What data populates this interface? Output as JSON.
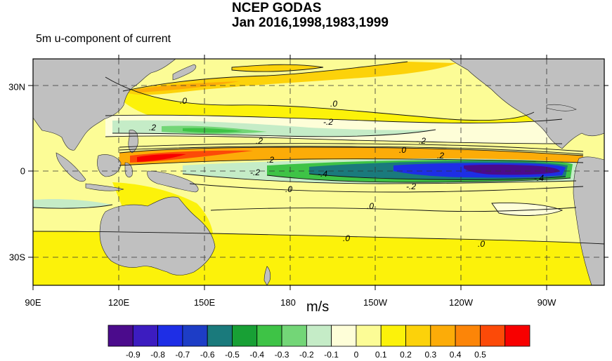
{
  "title_line1": "NCEP GODAS",
  "title_line2": "Jan 2016,1998,1983,1999",
  "subtitle": "5m u-component of current",
  "units": "m/s",
  "x_ticks": [
    "90E",
    "120E",
    "150E",
    "180",
    "150W",
    "120W",
    "90W"
  ],
  "y_ticks": [
    "30N",
    "0",
    "30S"
  ],
  "colorbar": {
    "labels": [
      "-0.9",
      "-0.8",
      "-0.7",
      "-0.6",
      "-0.5",
      "-0.4",
      "-0.3",
      "-0.2",
      "-0.1",
      "0",
      "0.1",
      "0.2",
      "0.3",
      "0.4",
      "0.5"
    ],
    "colors": [
      "#4b0b8c",
      "#3c1cc0",
      "#1e2ee6",
      "#1d3dc6",
      "#1a7a7c",
      "#18a035",
      "#3ec346",
      "#73d677",
      "#c5ecc7",
      "#fefed8",
      "#fcfc96",
      "#fcf20a",
      "#fcd20a",
      "#fcac08",
      "#fc8508",
      "#fc4a08",
      "#f80000"
    ]
  },
  "contour_labels": [
    ".0",
    ".0",
    ".2",
    "-.2",
    ".2",
    "-.2",
    ".0",
    ".2",
    "-.2",
    "-.4",
    ".0",
    "-.2",
    ".0",
    ".0",
    ".0",
    "-.4",
    ".2"
  ],
  "land_color": "#c0c0c0",
  "ocean_base_color": "#fcfc96"
}
